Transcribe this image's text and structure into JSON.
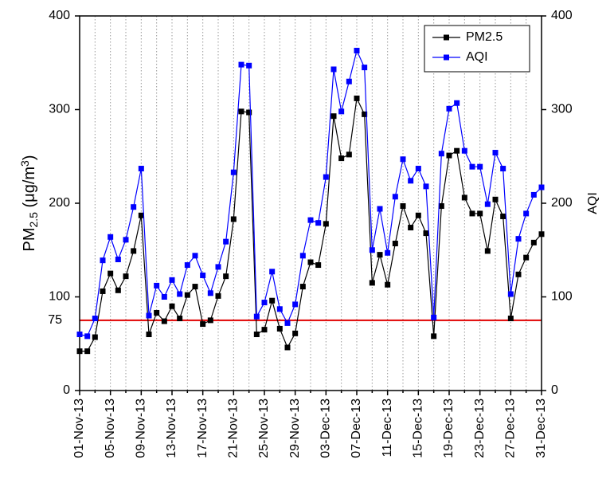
{
  "chart_data": {
    "type": "line",
    "categories": [
      "01-Nov-13",
      null,
      null,
      null,
      "05-Nov-13",
      null,
      null,
      null,
      "09-Nov-13",
      null,
      null,
      null,
      "13-Nov-13",
      null,
      null,
      null,
      "17-Nov-13",
      null,
      null,
      null,
      "21-Nov-13",
      null,
      null,
      null,
      "25-Nov-13",
      null,
      null,
      null,
      "29-Nov-13",
      null,
      null,
      null,
      "03-Dec-13",
      null,
      null,
      null,
      "07-Dec-13",
      null,
      null,
      null,
      "11-Dec-13",
      null,
      null,
      null,
      "15-Dec-13",
      null,
      null,
      null,
      "19-Dec-13",
      null,
      null,
      null,
      "23-Dec-13",
      null,
      null,
      null,
      "27-Dec-13",
      null,
      null,
      null,
      "31-Dec-13"
    ],
    "series": [
      {
        "name": "PM2.5",
        "color": "#000000",
        "values": [
          42,
          42,
          57,
          106,
          125,
          107,
          122,
          149,
          187,
          60,
          83,
          74,
          90,
          77,
          102,
          111,
          71,
          75,
          101,
          122,
          183,
          298,
          297,
          60,
          65,
          96,
          66,
          46,
          61,
          111,
          137,
          134,
          178,
          293,
          248,
          252,
          312,
          295,
          115,
          145,
          113,
          157,
          197,
          174,
          187,
          168,
          58,
          197,
          251,
          256,
          206,
          189,
          189,
          149,
          204,
          186,
          77,
          124,
          142,
          158,
          167
        ]
      },
      {
        "name": "AQI",
        "color": "#0000ff",
        "axis": "y2",
        "values": [
          60,
          58,
          77,
          139,
          164,
          140,
          161,
          196,
          237,
          80,
          112,
          100,
          118,
          103,
          134,
          144,
          123,
          104,
          132,
          159,
          233,
          348,
          347,
          79,
          94,
          127,
          87,
          72,
          92,
          144,
          182,
          179,
          228,
          343,
          298,
          330,
          363,
          345,
          150,
          194,
          147,
          207,
          247,
          224,
          237,
          218,
          78,
          253,
          301,
          307,
          256,
          239,
          239,
          199,
          254,
          237,
          103,
          162,
          189,
          209,
          217
        ]
      }
    ],
    "ylabel": {
      "main": "PM",
      "sub": "2.5",
      "rest": " (μg/m",
      "sup": "3",
      "end": ")"
    },
    "y2label": "AQI",
    "y2label_color": "#0000ff",
    "ylim": [
      0,
      400
    ],
    "yticks": [
      0,
      100,
      200,
      300,
      400
    ],
    "y2lim": [
      0,
      400
    ],
    "y2ticks": [
      0,
      100,
      200,
      300,
      400
    ],
    "reference_line": {
      "value": 75,
      "color": "#e00000"
    },
    "grid": true,
    "legend": "upper right"
  }
}
